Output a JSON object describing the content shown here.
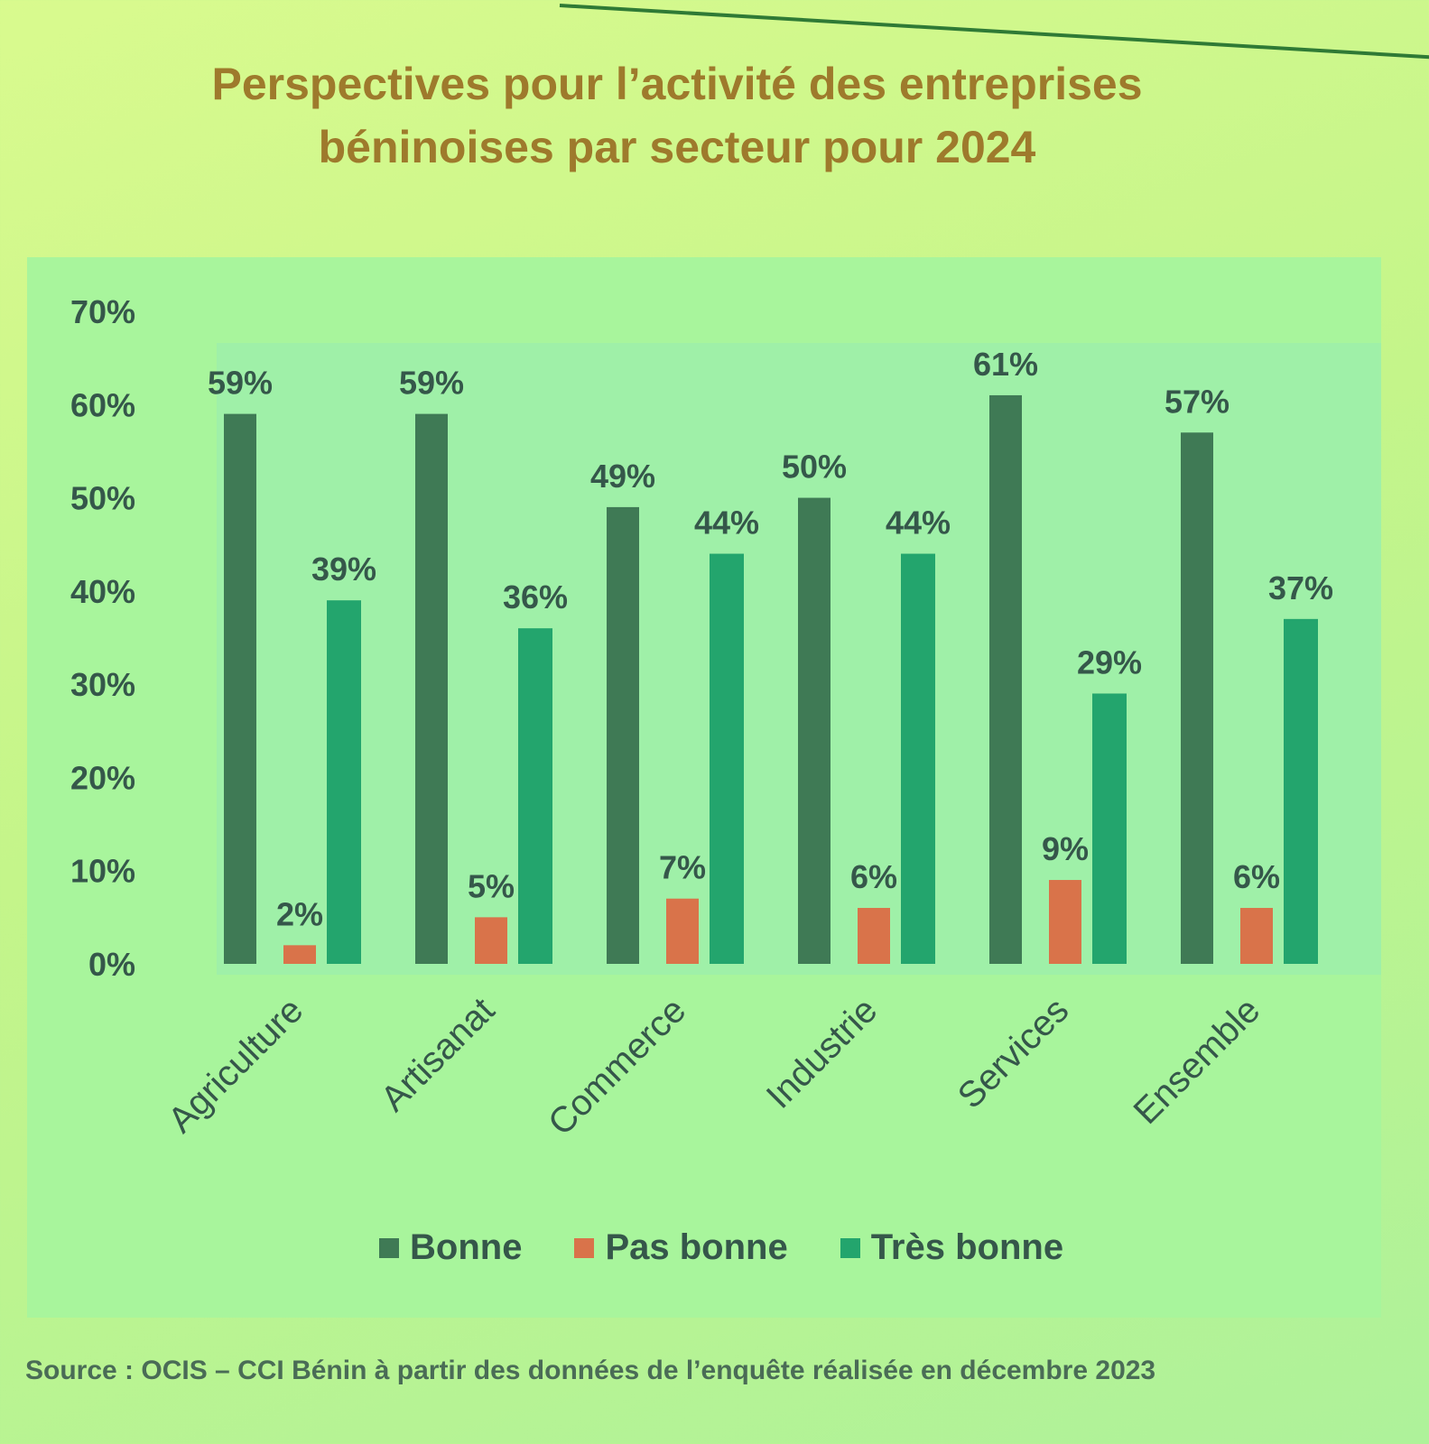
{
  "title_lines": [
    "Perspectives pour l’activité des entreprises",
    "béninoises par secteur pour 2024"
  ],
  "source": "Source : OCIS – CCI Bénin à partir des données de l’enquête réalisée en décembre 2023",
  "colors": {
    "bonne": "#3f7a55",
    "pas_bonne": "#d9734a",
    "tres_bonne": "#23a56d"
  },
  "chart_data": {
    "type": "bar",
    "title": "Perspectives pour l’activité des entreprises béninoises par secteur pour 2024",
    "categories": [
      "Agriculture",
      "Artisanat",
      "Commerce",
      "Industrie",
      "Services",
      "Ensemble"
    ],
    "series": [
      {
        "name": "Bonne",
        "values": [
          59,
          59,
          49,
          50,
          61,
          57
        ],
        "labels": [
          "59%",
          "59%",
          "49%",
          "50%",
          "61%",
          "57%"
        ]
      },
      {
        "name": "Pas bonne",
        "values": [
          2,
          5,
          7,
          6,
          9,
          6
        ],
        "labels": [
          "2%",
          "5%",
          "7%",
          "6%",
          "9%",
          "6%"
        ]
      },
      {
        "name": "Très bonne",
        "values": [
          39,
          36,
          44,
          44,
          29,
          37
        ],
        "labels": [
          "39%",
          "36%",
          "44%",
          "44%",
          "29%",
          "37%"
        ]
      }
    ],
    "y_ticks": [
      "0%",
      "10%",
      "20%",
      "30%",
      "40%",
      "50%",
      "60%",
      "70%"
    ],
    "ylim": [
      0,
      70
    ],
    "xlabel": "",
    "ylabel": "",
    "grid": false,
    "legend_position": "bottom"
  }
}
